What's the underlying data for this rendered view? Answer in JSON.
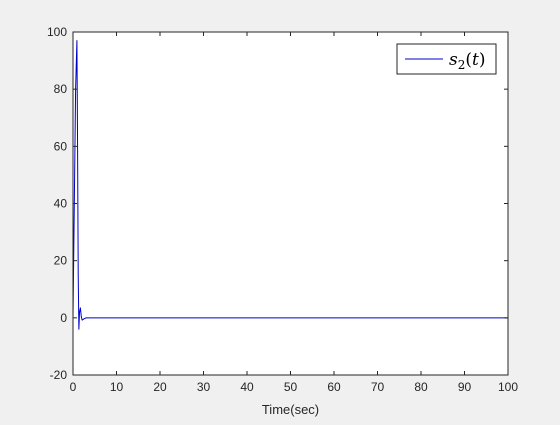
{
  "chart_data": {
    "type": "line",
    "title": "",
    "xlabel": "Time(sec)",
    "ylabel": "",
    "xlim": [
      0,
      100
    ],
    "ylim": [
      -20,
      100
    ],
    "xticks": [
      0,
      10,
      20,
      30,
      40,
      50,
      60,
      70,
      80,
      90,
      100
    ],
    "yticks": [
      -20,
      0,
      20,
      40,
      60,
      80,
      100
    ],
    "grid": false,
    "legend": {
      "position": "top-right",
      "entries": [
        "s2(t)"
      ]
    },
    "series": [
      {
        "name": "s2(t)",
        "color": "#0000cc",
        "x": [
          0,
          0.3,
          0.6,
          0.9,
          1.05,
          1.2,
          1.35,
          1.5,
          1.7,
          1.9,
          2.1,
          2.5,
          3,
          4,
          5,
          10,
          20,
          30,
          40,
          50,
          60,
          70,
          80,
          90,
          100
        ],
        "y": [
          0,
          40,
          80,
          97,
          60,
          15,
          -4,
          2,
          3.5,
          0.5,
          -0.8,
          -0.4,
          0,
          0,
          0,
          0,
          0,
          0,
          0,
          0,
          0,
          0,
          0,
          0,
          0
        ]
      }
    ]
  }
}
